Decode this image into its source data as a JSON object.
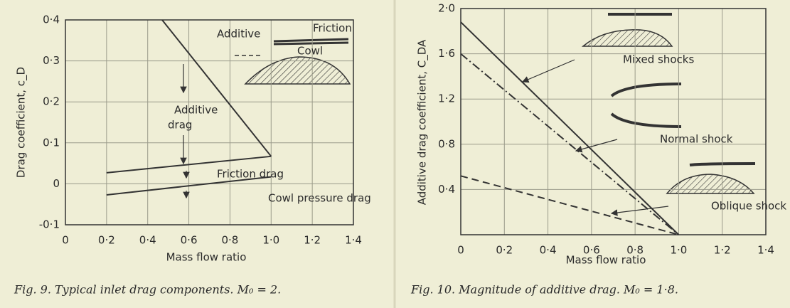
{
  "chart_data": [
    {
      "type": "line",
      "caption": "Fig. 9. Typical inlet drag components. M₀ = 2.",
      "x_label": "Mass flow ratio",
      "y_label": "Drag coefficient, c_D",
      "xlim": [
        0,
        1.4
      ],
      "ylim": [
        -0.1,
        0.4
      ],
      "xticks": [
        0,
        {
          "value": 0.2,
          "label": "0·2"
        },
        {
          "value": 0.4,
          "label": "0·4"
        },
        {
          "value": 0.6,
          "label": "0·6"
        },
        {
          "value": 0.8,
          "label": "0·8"
        },
        {
          "value": 1.0,
          "label": "1·0"
        },
        {
          "value": 1.2,
          "label": "1·2"
        },
        {
          "value": 1.4,
          "label": "1·4"
        }
      ],
      "yticks": [
        {
          "value": -0.1,
          "label": "-0·1"
        },
        0,
        {
          "value": 0.1,
          "label": "0·1"
        },
        {
          "value": 0.2,
          "label": "0·2"
        },
        {
          "value": 0.3,
          "label": "0·3"
        },
        {
          "value": 0.4,
          "label": "0·4"
        }
      ],
      "grid": true,
      "series": [
        {
          "color": "#333333",
          "style": "solid",
          "x": [
            0.47,
            1.0
          ],
          "values": [
            0.4,
            0.067
          ]
        },
        {
          "color": "#333333",
          "style": "solid",
          "x": [
            0.2,
            1.0
          ],
          "values": [
            0.027,
            0.067
          ]
        },
        {
          "color": "#333333",
          "style": "solid",
          "x": [
            0.2,
            1.0
          ],
          "values": [
            -0.027,
            0.017
          ]
        }
      ],
      "annotations": [
        "Additive",
        "Friction",
        "Cowl",
        "Additive",
        "drag",
        "Friction drag",
        "Cowl pressure drag"
      ]
    },
    {
      "type": "line",
      "caption": "Fig. 10. Magnitude of additive drag. M₀ = 1·8.",
      "x_label": "Mass flow ratio",
      "y_label": "Additive drag coefficient, C_DA",
      "xlim": [
        0,
        1.4
      ],
      "ylim": [
        0,
        2.0
      ],
      "xticks": [
        0,
        {
          "value": 0.2,
          "label": "0·2"
        },
        {
          "value": 0.4,
          "label": "0·4"
        },
        {
          "value": 0.6,
          "label": "0·6"
        },
        {
          "value": 0.8,
          "label": "0·8"
        },
        {
          "value": 1.0,
          "label": "1·0"
        },
        {
          "value": 1.2,
          "label": "1·2"
        },
        {
          "value": 1.4,
          "label": "1·4"
        }
      ],
      "yticks": [
        {
          "value": 0.4,
          "label": "0·4"
        },
        {
          "value": 0.8,
          "label": "0·8"
        },
        {
          "value": 1.2,
          "label": "1·2"
        },
        {
          "value": 1.6,
          "label": "1·6"
        },
        {
          "value": 2.0,
          "label": "2·0"
        }
      ],
      "grid": true,
      "series": [
        {
          "color": "#333333",
          "style": "solid",
          "x": [
            0,
            1.0
          ],
          "values": [
            1.88,
            0
          ]
        },
        {
          "color": "#333333",
          "style": "dashdot",
          "x": [
            0,
            1.0
          ],
          "values": [
            1.6,
            0
          ]
        },
        {
          "color": "#333333",
          "style": "dashed",
          "x": [
            0,
            1.0
          ],
          "values": [
            0.52,
            0
          ]
        }
      ],
      "annotations": [
        "Mixed shocks",
        "Normal shock",
        "Oblique shock"
      ]
    }
  ]
}
